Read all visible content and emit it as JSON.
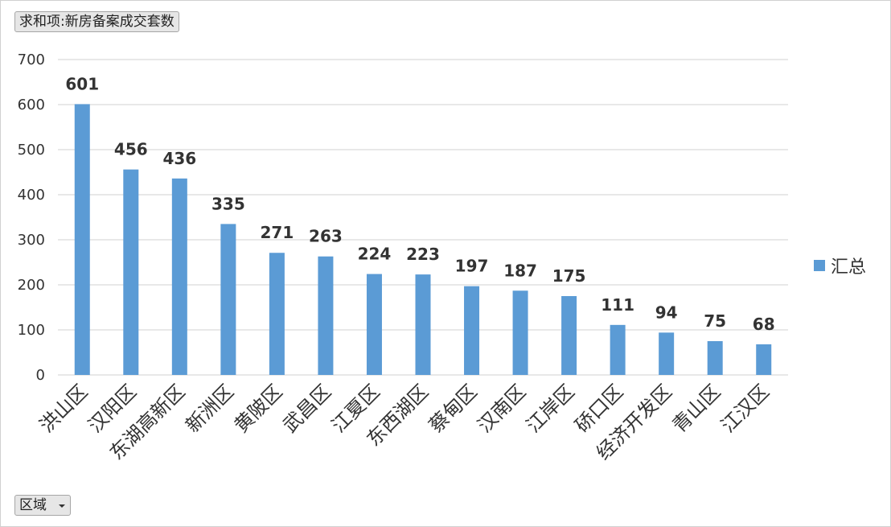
{
  "field_button": {
    "label": "求和项:新房备案成交套数"
  },
  "axis_button": {
    "label": "区域",
    "icon": "dropdown-arrow-icon"
  },
  "colors": {
    "bar": "#5b9bd5",
    "grid": "#d9d9d9"
  },
  "chart_data": {
    "type": "bar",
    "categories": [
      "洪山区",
      "汉阳区",
      "东湖高新区",
      "新洲区",
      "黄陂区",
      "武昌区",
      "江夏区",
      "东西湖区",
      "蔡甸区",
      "汉南区",
      "江岸区",
      "硚口区",
      "经济开发区",
      "青山区",
      "江汉区"
    ],
    "series": [
      {
        "name": "汇总",
        "values": [
          601,
          456,
          436,
          335,
          271,
          263,
          224,
          223,
          197,
          187,
          175,
          111,
          94,
          75,
          68
        ]
      }
    ],
    "ylim": [
      0,
      700
    ],
    "yticks": [
      0,
      100,
      200,
      300,
      400,
      500,
      600,
      700
    ],
    "grid": true,
    "legend_position": "right",
    "data_labels": true
  }
}
